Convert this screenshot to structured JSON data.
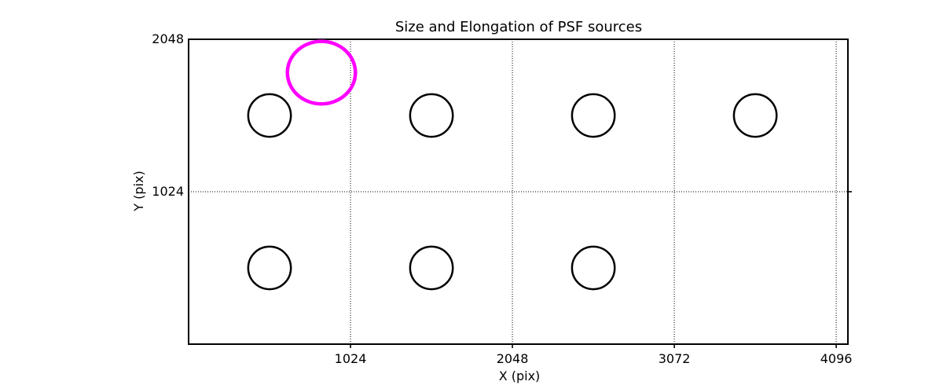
{
  "chart_data": {
    "type": "scatter",
    "title": "Size and Elongation of PSF sources",
    "xlabel": "X (pix)",
    "ylabel": "Y (pix)",
    "xlim": [
      0,
      4170
    ],
    "ylim": [
      0,
      2048
    ],
    "xticks": [
      1024,
      2048,
      3072,
      4096
    ],
    "yticks": [
      1024,
      2048
    ],
    "x_gridlines": [
      1024,
      2048,
      3072,
      4096
    ],
    "y_gridlines": [
      1024
    ],
    "grid_on": true,
    "grid_style": "dotted",
    "legend_position": "none",
    "marker_shape": "ellipse-outline",
    "sources": [
      {
        "x": 512,
        "y": 1536,
        "rx": 135,
        "ry": 143
      },
      {
        "x": 1536,
        "y": 1536,
        "rx": 135,
        "ry": 143
      },
      {
        "x": 2560,
        "y": 1536,
        "rx": 135,
        "ry": 143
      },
      {
        "x": 3584,
        "y": 1536,
        "rx": 135,
        "ry": 143
      },
      {
        "x": 512,
        "y": 512,
        "rx": 135,
        "ry": 143
      },
      {
        "x": 1536,
        "y": 512,
        "rx": 135,
        "ry": 143
      },
      {
        "x": 2560,
        "y": 512,
        "rx": 135,
        "ry": 143
      }
    ],
    "highlight": {
      "x": 840,
      "y": 1824,
      "rx": 215,
      "ry": 210
    },
    "colors": {
      "source_stroke": "#000000",
      "highlight_stroke": "#ff00ff",
      "axis": "#000000",
      "background": "#ffffff"
    }
  }
}
